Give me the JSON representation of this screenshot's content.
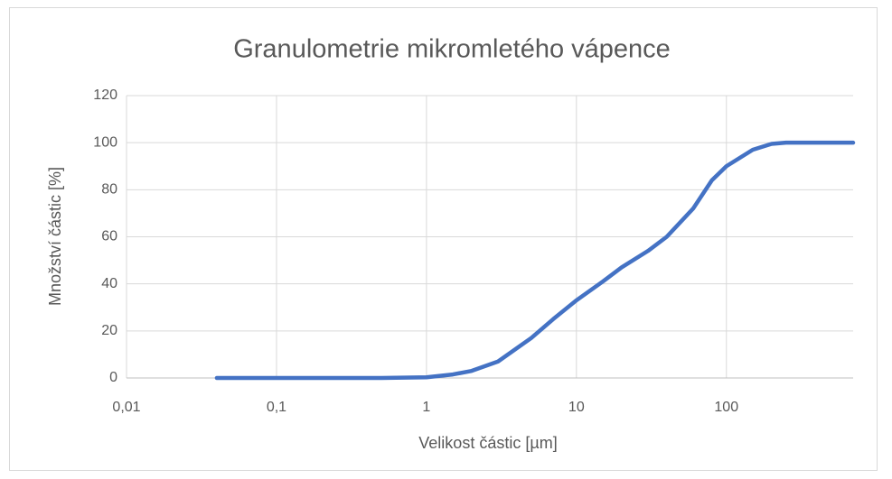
{
  "chart_data": {
    "type": "line",
    "title": "Granulometrie mikromletého vápence",
    "x_label": "Velikost částic [µm]",
    "y_label": "Množství částic [%]",
    "x": [
      0.04,
      0.1,
      0.5,
      1,
      1.5,
      2,
      3,
      5,
      7,
      10,
      15,
      20,
      30,
      40,
      60,
      80,
      100,
      150,
      200,
      250,
      700
    ],
    "series": [
      {
        "name": "Granulometrie",
        "color": "#4472c4",
        "values": [
          0,
          0,
          0,
          0.3,
          1.5,
          3,
          7,
          17,
          25,
          33,
          41,
          47,
          54,
          60,
          72,
          84,
          90,
          97,
          99.5,
          100,
          100
        ]
      }
    ],
    "xscale": "log",
    "xlim": [
      0.01,
      700
    ],
    "xticks": [
      {
        "value": 0.01,
        "label": "0,01"
      },
      {
        "value": 0.1,
        "label": "0,1"
      },
      1,
      10,
      100
    ],
    "ylim": [
      0,
      120
    ],
    "yticks": [
      0,
      20,
      40,
      60,
      80,
      100,
      120
    ],
    "grid": true
  }
}
